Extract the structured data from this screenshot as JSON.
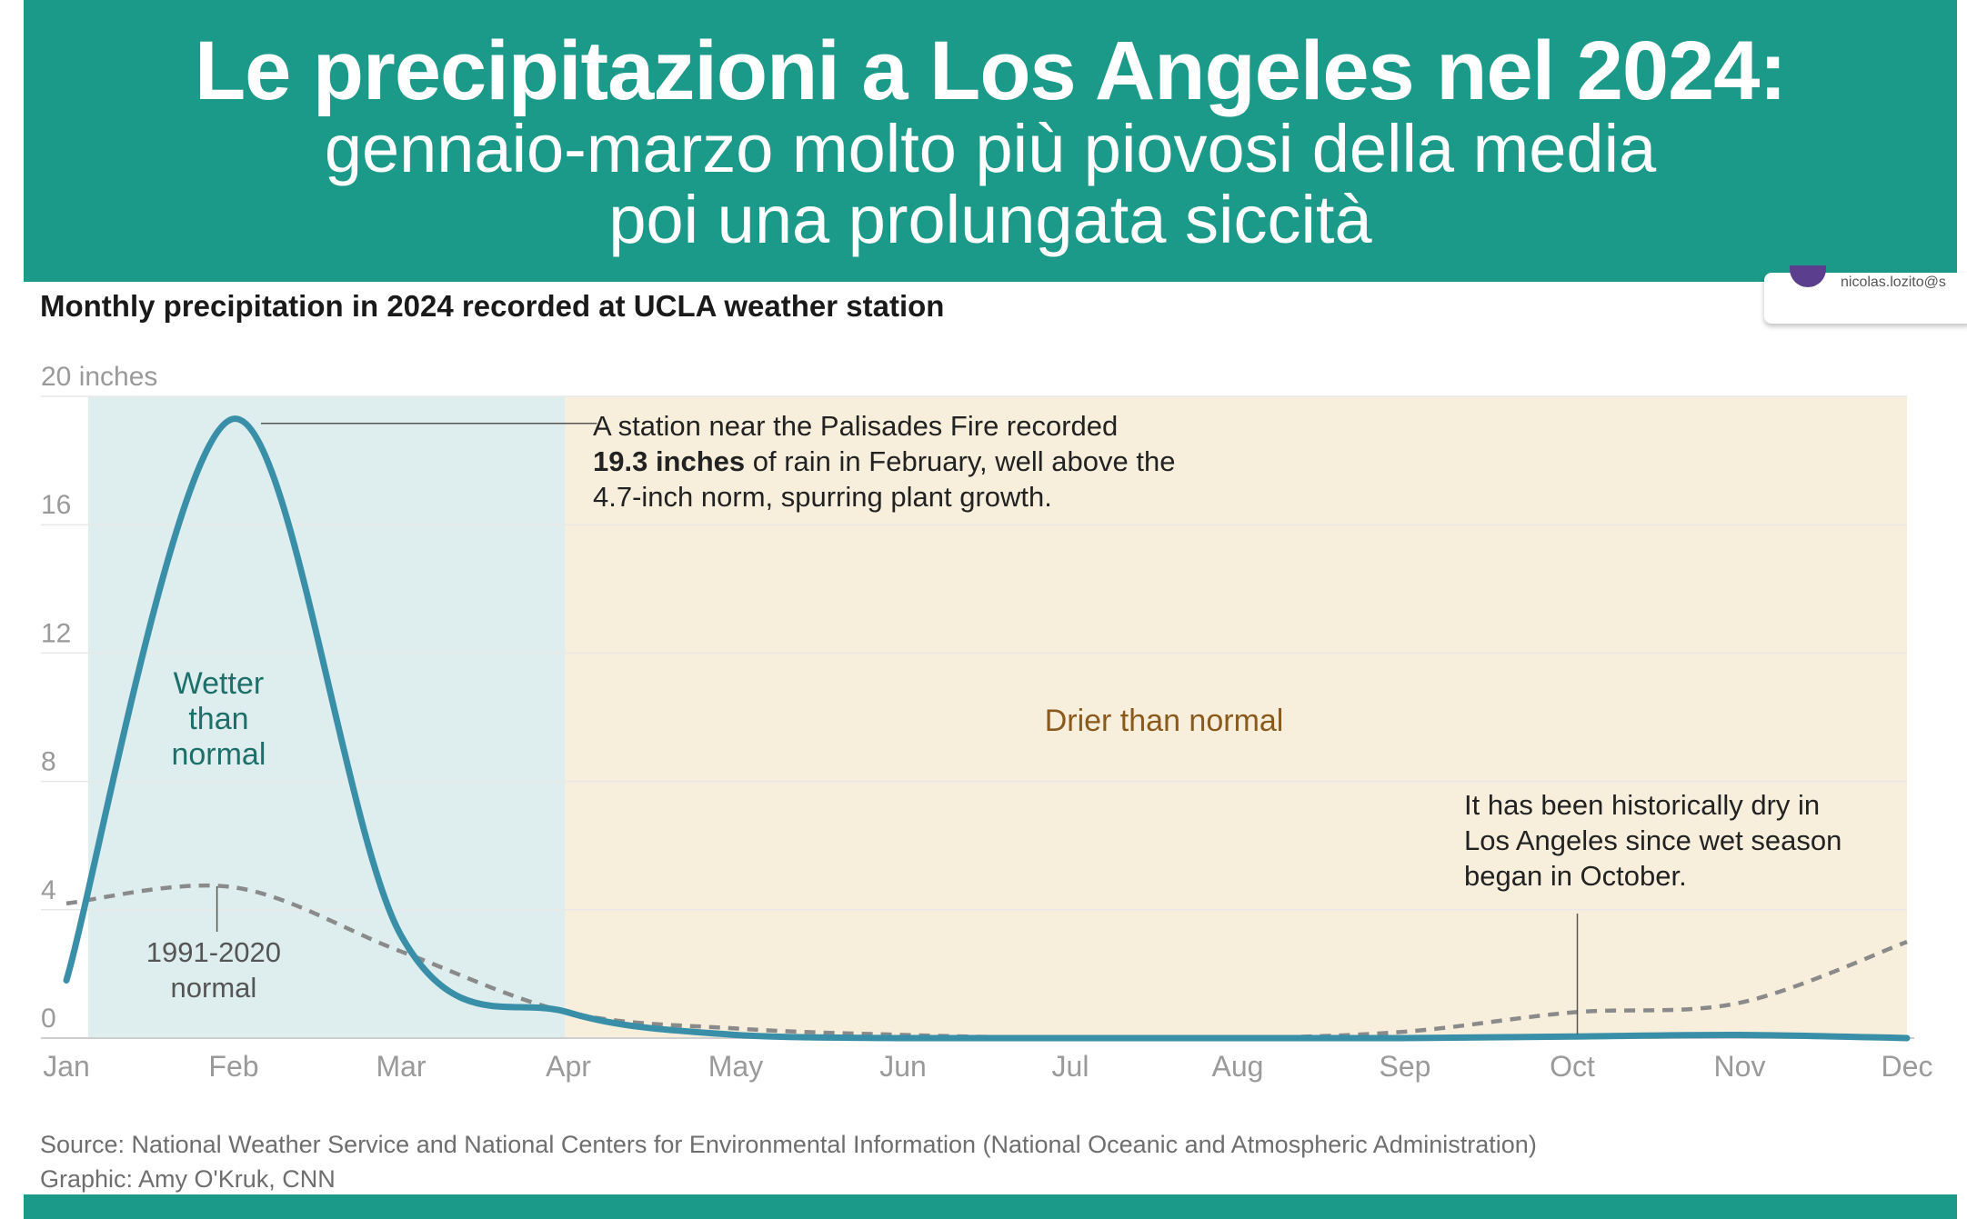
{
  "header": {
    "title": "Le precipitazioni a Los Angeles nel 2024:",
    "subtitle_line1": "gennaio-marzo molto più piovosi della media",
    "subtitle_line2": "poi una prolungata siccità"
  },
  "corner_card": {
    "text": "nicolas.lozito@s"
  },
  "chart_data": {
    "type": "line",
    "title": "Monthly precipitation in 2024 recorded at UCLA weather station",
    "ylabel": "",
    "y_unit_label": "20 inches",
    "ylim": [
      0,
      20
    ],
    "yticks": [
      {
        "value": 0,
        "label": "0"
      },
      {
        "value": 4,
        "label": "4"
      },
      {
        "value": 8,
        "label": "8"
      },
      {
        "value": 12,
        "label": "12"
      },
      {
        "value": 16,
        "label": "16"
      },
      {
        "value": 20,
        "label": "20 inches"
      }
    ],
    "categories": [
      "Jan",
      "Feb",
      "Mar",
      "Apr",
      "May",
      "Jun",
      "Jul",
      "Aug",
      "Sep",
      "Oct",
      "Nov",
      "Dec"
    ],
    "series": [
      {
        "name": "2024 precipitation",
        "color": "#3a8fa8",
        "style": "solid",
        "x": [
          0,
          1,
          2,
          3,
          4,
          5,
          6,
          7,
          8,
          9,
          10,
          11
        ],
        "values": [
          1.8,
          19.3,
          3.2,
          0.8,
          0.1,
          0.0,
          0.0,
          0.0,
          0.0,
          0.05,
          0.1,
          0.0
        ]
      },
      {
        "name": "1991-2020 normal",
        "color": "#8a8a8a",
        "style": "dashed",
        "x": [
          0,
          1,
          2,
          3,
          4,
          5,
          6,
          7,
          8,
          9,
          10,
          11
        ],
        "values": [
          4.2,
          4.7,
          2.7,
          0.8,
          0.3,
          0.1,
          0.0,
          0.0,
          0.2,
          0.8,
          1.1,
          3.0
        ]
      }
    ],
    "regions": [
      {
        "name": "wetter",
        "label": [
          "Wetter",
          "than",
          "normal"
        ],
        "x_range": [
          0.13,
          2.98
        ],
        "color": "#deeeee",
        "label_color": "#1d6f6a"
      },
      {
        "name": "drier",
        "label": [
          "Drier than normal"
        ],
        "x_range": [
          2.98,
          11.0
        ],
        "color": "#f7efdc",
        "label_color": "#8a5a1c"
      }
    ],
    "annotations": {
      "february": {
        "line1": "A station near the Palisades Fire recorded",
        "bold": "19.3 inches",
        "line2_rest": " of rain in February, well above the",
        "line3": "4.7-inch norm, spurring plant growth."
      },
      "normal_label": [
        "1991-2020",
        "normal"
      ],
      "dry_note": [
        "It has been historically dry in",
        "Los Angeles since wet season",
        "began in October."
      ]
    },
    "colors": {
      "axis": "#cfcfcf",
      "tick_text": "#9a9a9a",
      "grid": "#e8e8e8",
      "text": "#222222"
    }
  },
  "footer": {
    "source": "Source: National Weather Service and National Centers for Environmental Information (National Oceanic and Atmospheric Administration)",
    "credit": "Graphic: Amy O'Kruk, CNN"
  }
}
